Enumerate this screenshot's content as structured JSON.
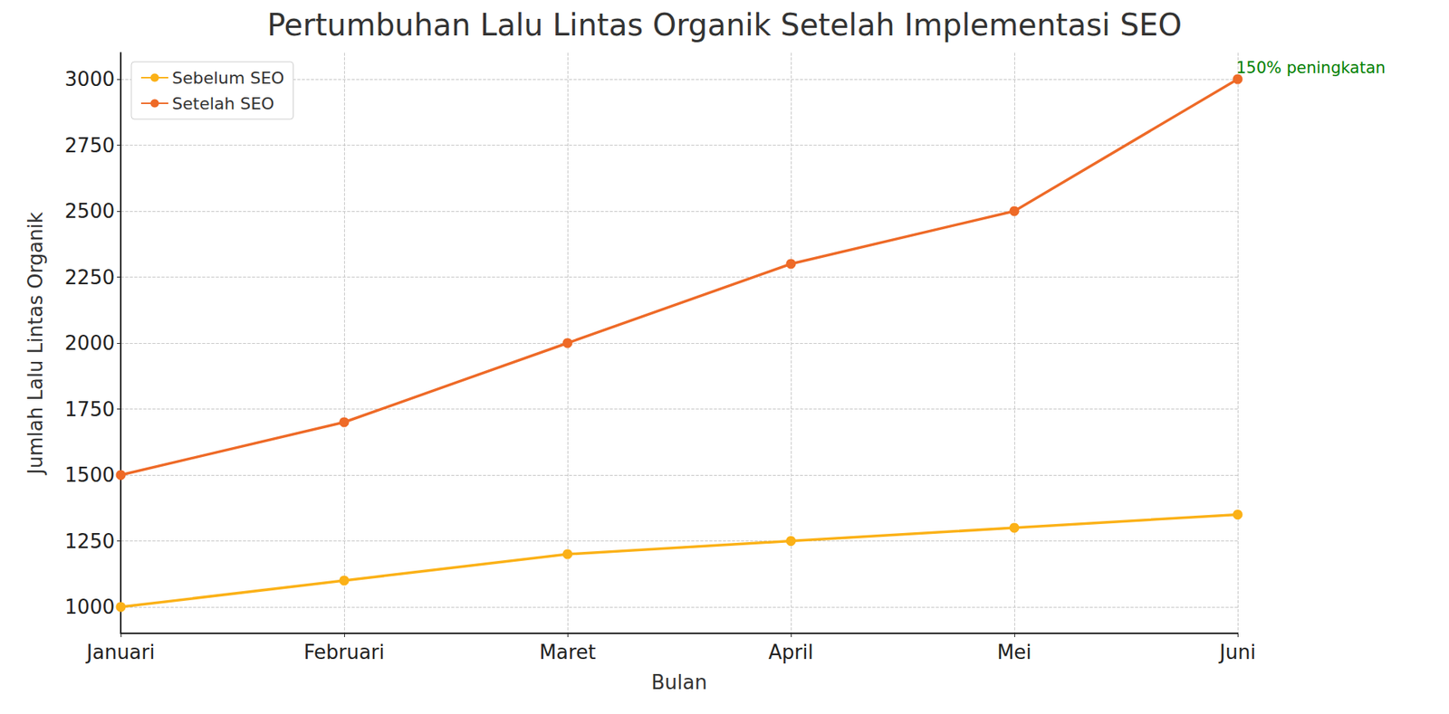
{
  "chart_data": {
    "type": "line",
    "title": "Pertumbuhan Lalu Lintas Organik Setelah Implementasi SEO",
    "x_label": "Bulan",
    "y_label": "Jumlah Lalu Lintas Organik",
    "categories": [
      "Januari",
      "Februari",
      "Maret",
      "April",
      "Mei",
      "Juni"
    ],
    "series": [
      {
        "name": "Sebelum SEO",
        "color": "#fbb117",
        "marker": "circle",
        "line_style": "solid",
        "values": [
          1000,
          1100,
          1200,
          1250,
          1300,
          1350
        ]
      },
      {
        "name": "Setelah SEO",
        "color": "#ee6a27",
        "marker": "circle",
        "line_style": "solid",
        "values": [
          1500,
          1700,
          2000,
          2300,
          2500,
          3000
        ]
      }
    ],
    "ylim": [
      900,
      3100
    ],
    "yticks": [
      1000,
      1250,
      1500,
      1750,
      2000,
      2250,
      2500,
      2750,
      3000
    ],
    "grid": true,
    "legend": "upper left",
    "annotations": [
      {
        "text": "150% peningkatan",
        "x": "Juni",
        "y": 3000
      }
    ]
  }
}
